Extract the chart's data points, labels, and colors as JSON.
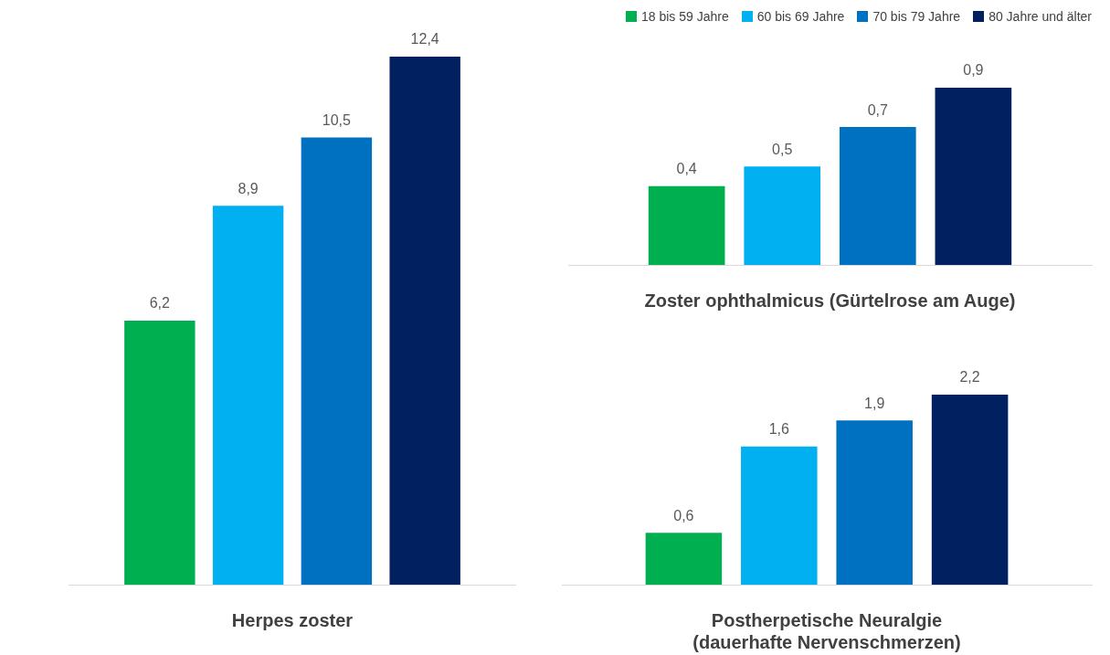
{
  "chart_data": [
    {
      "type": "bar",
      "categories": [
        null
      ],
      "xlabel": "Herpes zoster",
      "series": [
        {
          "color": "#00b050",
          "values": [
            6.2
          ],
          "value_labels": [
            "6,2"
          ]
        },
        {
          "color": "#00b0f0",
          "values": [
            8.9
          ],
          "value_labels": [
            "8,9"
          ]
        },
        {
          "color": "#0070c0",
          "values": [
            10.5
          ],
          "value_labels": [
            "10,5"
          ]
        },
        {
          "color": "#002060",
          "values": [
            12.4
          ],
          "value_labels": [
            "12,4"
          ]
        }
      ],
      "tick_labels": false,
      "grid": false
    },
    {
      "type": "bar",
      "categories": [
        null
      ],
      "xlabel": "Zoster ophthalmicus (Gürtelrose am Auge)",
      "series": [
        {
          "name": "18 bis 59 Jahre",
          "color": "#00b050",
          "values": [
            0.4
          ],
          "value_labels": [
            "0,4"
          ]
        },
        {
          "name": "60 bis 69 Jahre",
          "color": "#00b0f0",
          "values": [
            0.5
          ],
          "value_labels": [
            "0,5"
          ]
        },
        {
          "name": "70 bis 79 Jahre",
          "color": "#0070c0",
          "values": [
            0.7
          ],
          "value_labels": [
            "0,7"
          ]
        },
        {
          "name": "80 Jahre und älter",
          "color": "#002060",
          "values": [
            0.9
          ],
          "value_labels": [
            "0,9"
          ]
        }
      ],
      "tick_labels": false,
      "grid": false,
      "legend": "top right"
    },
    {
      "type": "bar",
      "categories": [
        null
      ],
      "xlabel": "Postherpetische Neuralgie\n(dauerhafte Nervenschmerzen)",
      "series": [
        {
          "color": "#00b050",
          "values": [
            0.6
          ],
          "value_labels": [
            "0,6"
          ]
        },
        {
          "color": "#00b0f0",
          "values": [
            1.6
          ],
          "value_labels": [
            "1,6"
          ]
        },
        {
          "color": "#0070c0",
          "values": [
            1.9
          ],
          "value_labels": [
            "1,9"
          ]
        },
        {
          "color": "#002060",
          "values": [
            2.2
          ],
          "value_labels": [
            "2,2"
          ]
        }
      ],
      "tick_labels": false,
      "grid": false
    }
  ]
}
